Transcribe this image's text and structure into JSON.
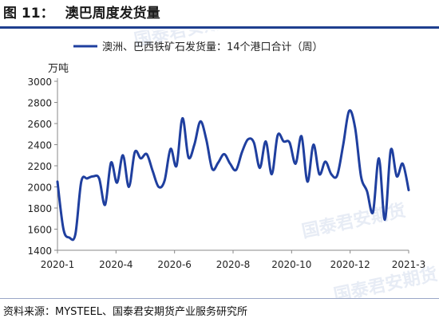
{
  "figure": {
    "number": "图 11：",
    "title": "澳巴周度发货量",
    "source": "资料来源：MYSTEEL、国泰君安期货产业服务研究所",
    "watermark": "国泰君安期货"
  },
  "chart_data": {
    "type": "line",
    "title": "",
    "ylabel": "万吨",
    "xlabel": "",
    "ylim": [
      1400,
      3000
    ],
    "yticks": [
      1400,
      1600,
      1800,
      2000,
      2200,
      2400,
      2600,
      2800,
      3000
    ],
    "xtick_labels": [
      "2020-1",
      "2020-4",
      "2020-6",
      "2020-8",
      "2020-10",
      "2020-12",
      "2021-3"
    ],
    "grid": false,
    "legend": "top",
    "series": [
      {
        "name": "澳洲、巴西铁矿石发货量：14个港口合计（周）",
        "color": "#1f3f9f",
        "values": [
          2050,
          1600,
          1520,
          1550,
          2050,
          2080,
          2100,
          2080,
          1830,
          2230,
          2040,
          2300,
          2000,
          2330,
          2270,
          2310,
          2150,
          2000,
          2060,
          2360,
          2200,
          2650,
          2280,
          2400,
          2620,
          2450,
          2170,
          2230,
          2310,
          2220,
          2160,
          2330,
          2450,
          2420,
          2180,
          2430,
          2120,
          2490,
          2430,
          2420,
          2220,
          2480,
          2050,
          2400,
          2120,
          2240,
          2120,
          2110,
          2400,
          2720,
          2560,
          2100,
          1960,
          1760,
          2270,
          1690,
          2350,
          2100,
          2220,
          1970
        ]
      }
    ]
  }
}
